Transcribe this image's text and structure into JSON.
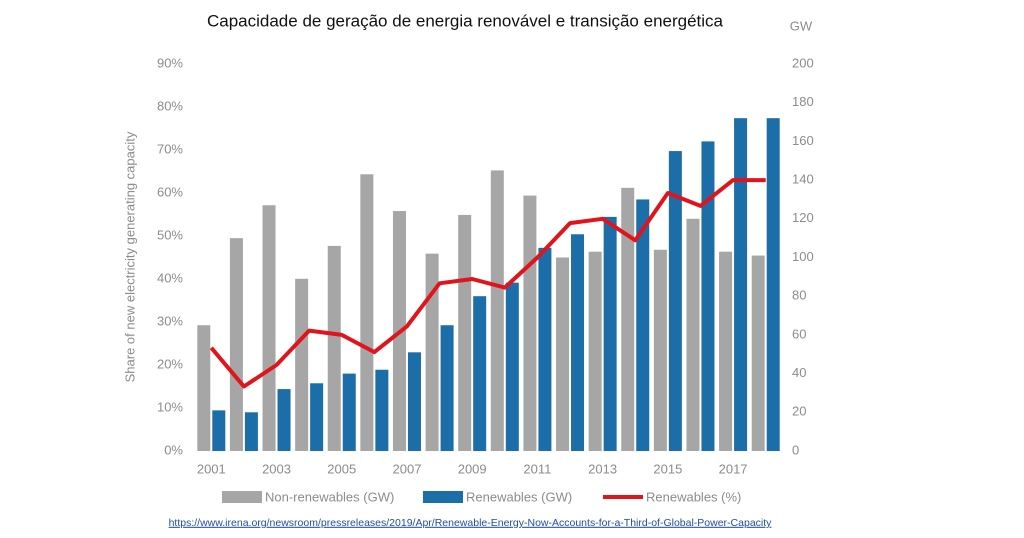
{
  "chart_data": {
    "type": "bar_line",
    "title": "Capacidade de geração de energia renovável e transição energética",
    "y_label": "Share of new electricity generating capacity",
    "y2_label": "GW",
    "source": "https://www.irena.org/newsroom/pressreleases/2019/Apr/Renewable-Energy-Now-Accounts-for-a-Third-of-Global-Power-Capacity",
    "categories": [
      "2001",
      null,
      "2003",
      null,
      "2005",
      null,
      "2007",
      null,
      "2009",
      null,
      "2011",
      null,
      "2013",
      null,
      "2015",
      null,
      "2017",
      null
    ],
    "series": [
      {
        "name": "Non-renewables (GW)",
        "type": "bar",
        "axis": "y2",
        "color": "#a6a6a6",
        "values": [
          65,
          110,
          127,
          89,
          106,
          143,
          124,
          102,
          122,
          145,
          132,
          100,
          103,
          136,
          104,
          120,
          103,
          101
        ]
      },
      {
        "name": "Renewables (GW)",
        "type": "bar",
        "axis": "y2",
        "color": "#1b6ea8",
        "values": [
          21,
          20,
          32,
          35,
          40,
          42,
          51,
          65,
          80,
          87,
          105,
          112,
          121,
          130,
          155,
          160,
          172,
          172
        ]
      },
      {
        "name": "Renewables (%)",
        "type": "line",
        "axis": "y",
        "color": "#e2141b",
        "values": [
          24,
          15,
          20,
          28,
          27,
          23,
          29,
          39,
          40,
          38,
          45,
          53,
          54,
          49,
          60,
          57,
          63,
          63
        ]
      }
    ],
    "ylim": [
      0,
      90
    ],
    "yticks": [
      {
        "value": 0,
        "label": "0%"
      },
      {
        "value": 10,
        "label": "10%"
      },
      {
        "value": 20,
        "label": "20%"
      },
      {
        "value": 30,
        "label": "30%"
      },
      {
        "value": 40,
        "label": "40%"
      },
      {
        "value": 50,
        "label": "50%"
      },
      {
        "value": 60,
        "label": "60%"
      },
      {
        "value": 70,
        "label": "70%"
      },
      {
        "value": 80,
        "label": "80%"
      },
      {
        "value": 90,
        "label": "90%"
      }
    ],
    "y2lim": [
      0,
      200
    ],
    "y2ticks": [
      0,
      20,
      40,
      60,
      80,
      100,
      120,
      140,
      160,
      180,
      200
    ],
    "grid": false,
    "legend": "bottom"
  }
}
